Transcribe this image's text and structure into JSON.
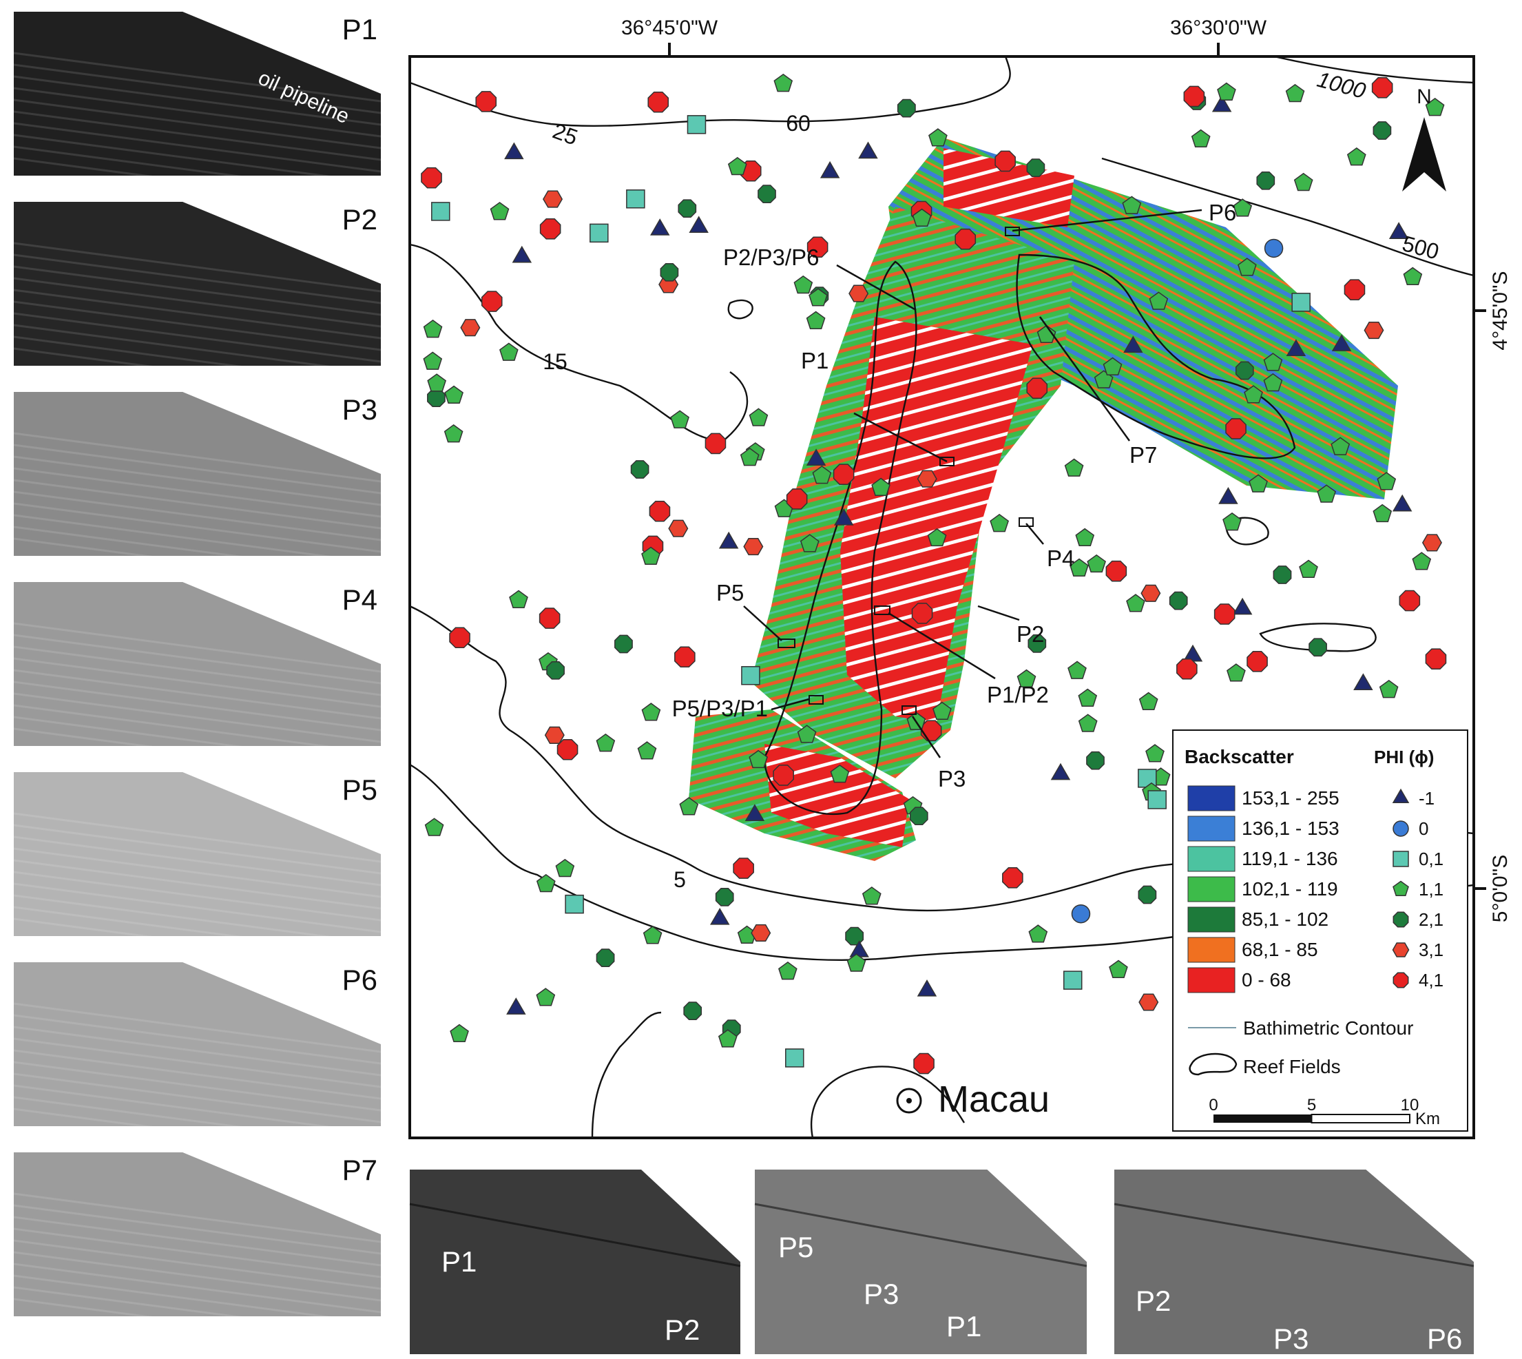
{
  "side_panels": [
    {
      "label": "P1",
      "annotation": "oil pipeline",
      "tone": "#202020"
    },
    {
      "label": "P2",
      "tone": "#262626"
    },
    {
      "label": "P3",
      "tone": "#8a8a8a"
    },
    {
      "label": "P4",
      "tone": "#9a9a9a"
    },
    {
      "label": "P5",
      "tone": "#b4b4b4"
    },
    {
      "label": "P6",
      "tone": "#a6a6a6"
    },
    {
      "label": "P7",
      "tone": "#9c9c9c"
    }
  ],
  "map": {
    "lon_labels": [
      "36°45'0\"W",
      "36°30'0\"W"
    ],
    "lat_labels": [
      "4°45'0\"S",
      "5°0'0\"S"
    ],
    "contour_labels": [
      "1000",
      "60",
      "25",
      "500",
      "15",
      "5"
    ],
    "north": "N",
    "place": "Macau",
    "site_labels": [
      "P6",
      "P2/P3/P6",
      "P1",
      "P7",
      "P4",
      "P5",
      "P2",
      "P1/P2",
      "P5/P3/P1",
      "P3"
    ]
  },
  "legend": {
    "backscatter_title": "Backscatter",
    "phi_title": "PHI (ϕ)",
    "backscatter_classes": [
      {
        "label": "153,1 - 255",
        "color": "#1f3fa8"
      },
      {
        "label": "136,1 - 153",
        "color": "#3b7fd6"
      },
      {
        "label": "119,1 - 136",
        "color": "#4cc3a0"
      },
      {
        "label": "102,1 - 119",
        "color": "#3dbb4a"
      },
      {
        "label": "85,1 - 102",
        "color": "#1d7a3a"
      },
      {
        "label": "68,1 - 85",
        "color": "#f07020"
      },
      {
        "label": "0 - 68",
        "color": "#e82222"
      }
    ],
    "phi_classes": [
      {
        "label": "-1",
        "shape": "triangle",
        "color": "#1f2a6e"
      },
      {
        "label": "0",
        "shape": "circle",
        "color": "#3a7bd5"
      },
      {
        "label": "0,1",
        "shape": "square",
        "color": "#5cc8b2"
      },
      {
        "label": "1,1",
        "shape": "pentagon",
        "color": "#3db54b"
      },
      {
        "label": "2,1",
        "shape": "octagon",
        "color": "#1e7b3c"
      },
      {
        "label": "3,1",
        "shape": "hexagon",
        "color": "#e8432e"
      },
      {
        "label": "4,1",
        "shape": "octagon",
        "color": "#e62222"
      }
    ],
    "contour": "Bathimetric Contour",
    "reef": "Reef Fields",
    "scale": {
      "ticks": [
        "0",
        "5",
        "10"
      ],
      "unit": "Km"
    }
  },
  "bottom_panels": [
    {
      "labels": [
        "P1",
        "P2"
      ],
      "tone": "#3a3a3a"
    },
    {
      "labels": [
        "P5",
        "P3",
        "P1"
      ],
      "tone": "#7a7a7a"
    },
    {
      "labels": [
        "P2",
        "P3",
        "P6"
      ],
      "tone": "#6e6e6e"
    }
  ]
}
